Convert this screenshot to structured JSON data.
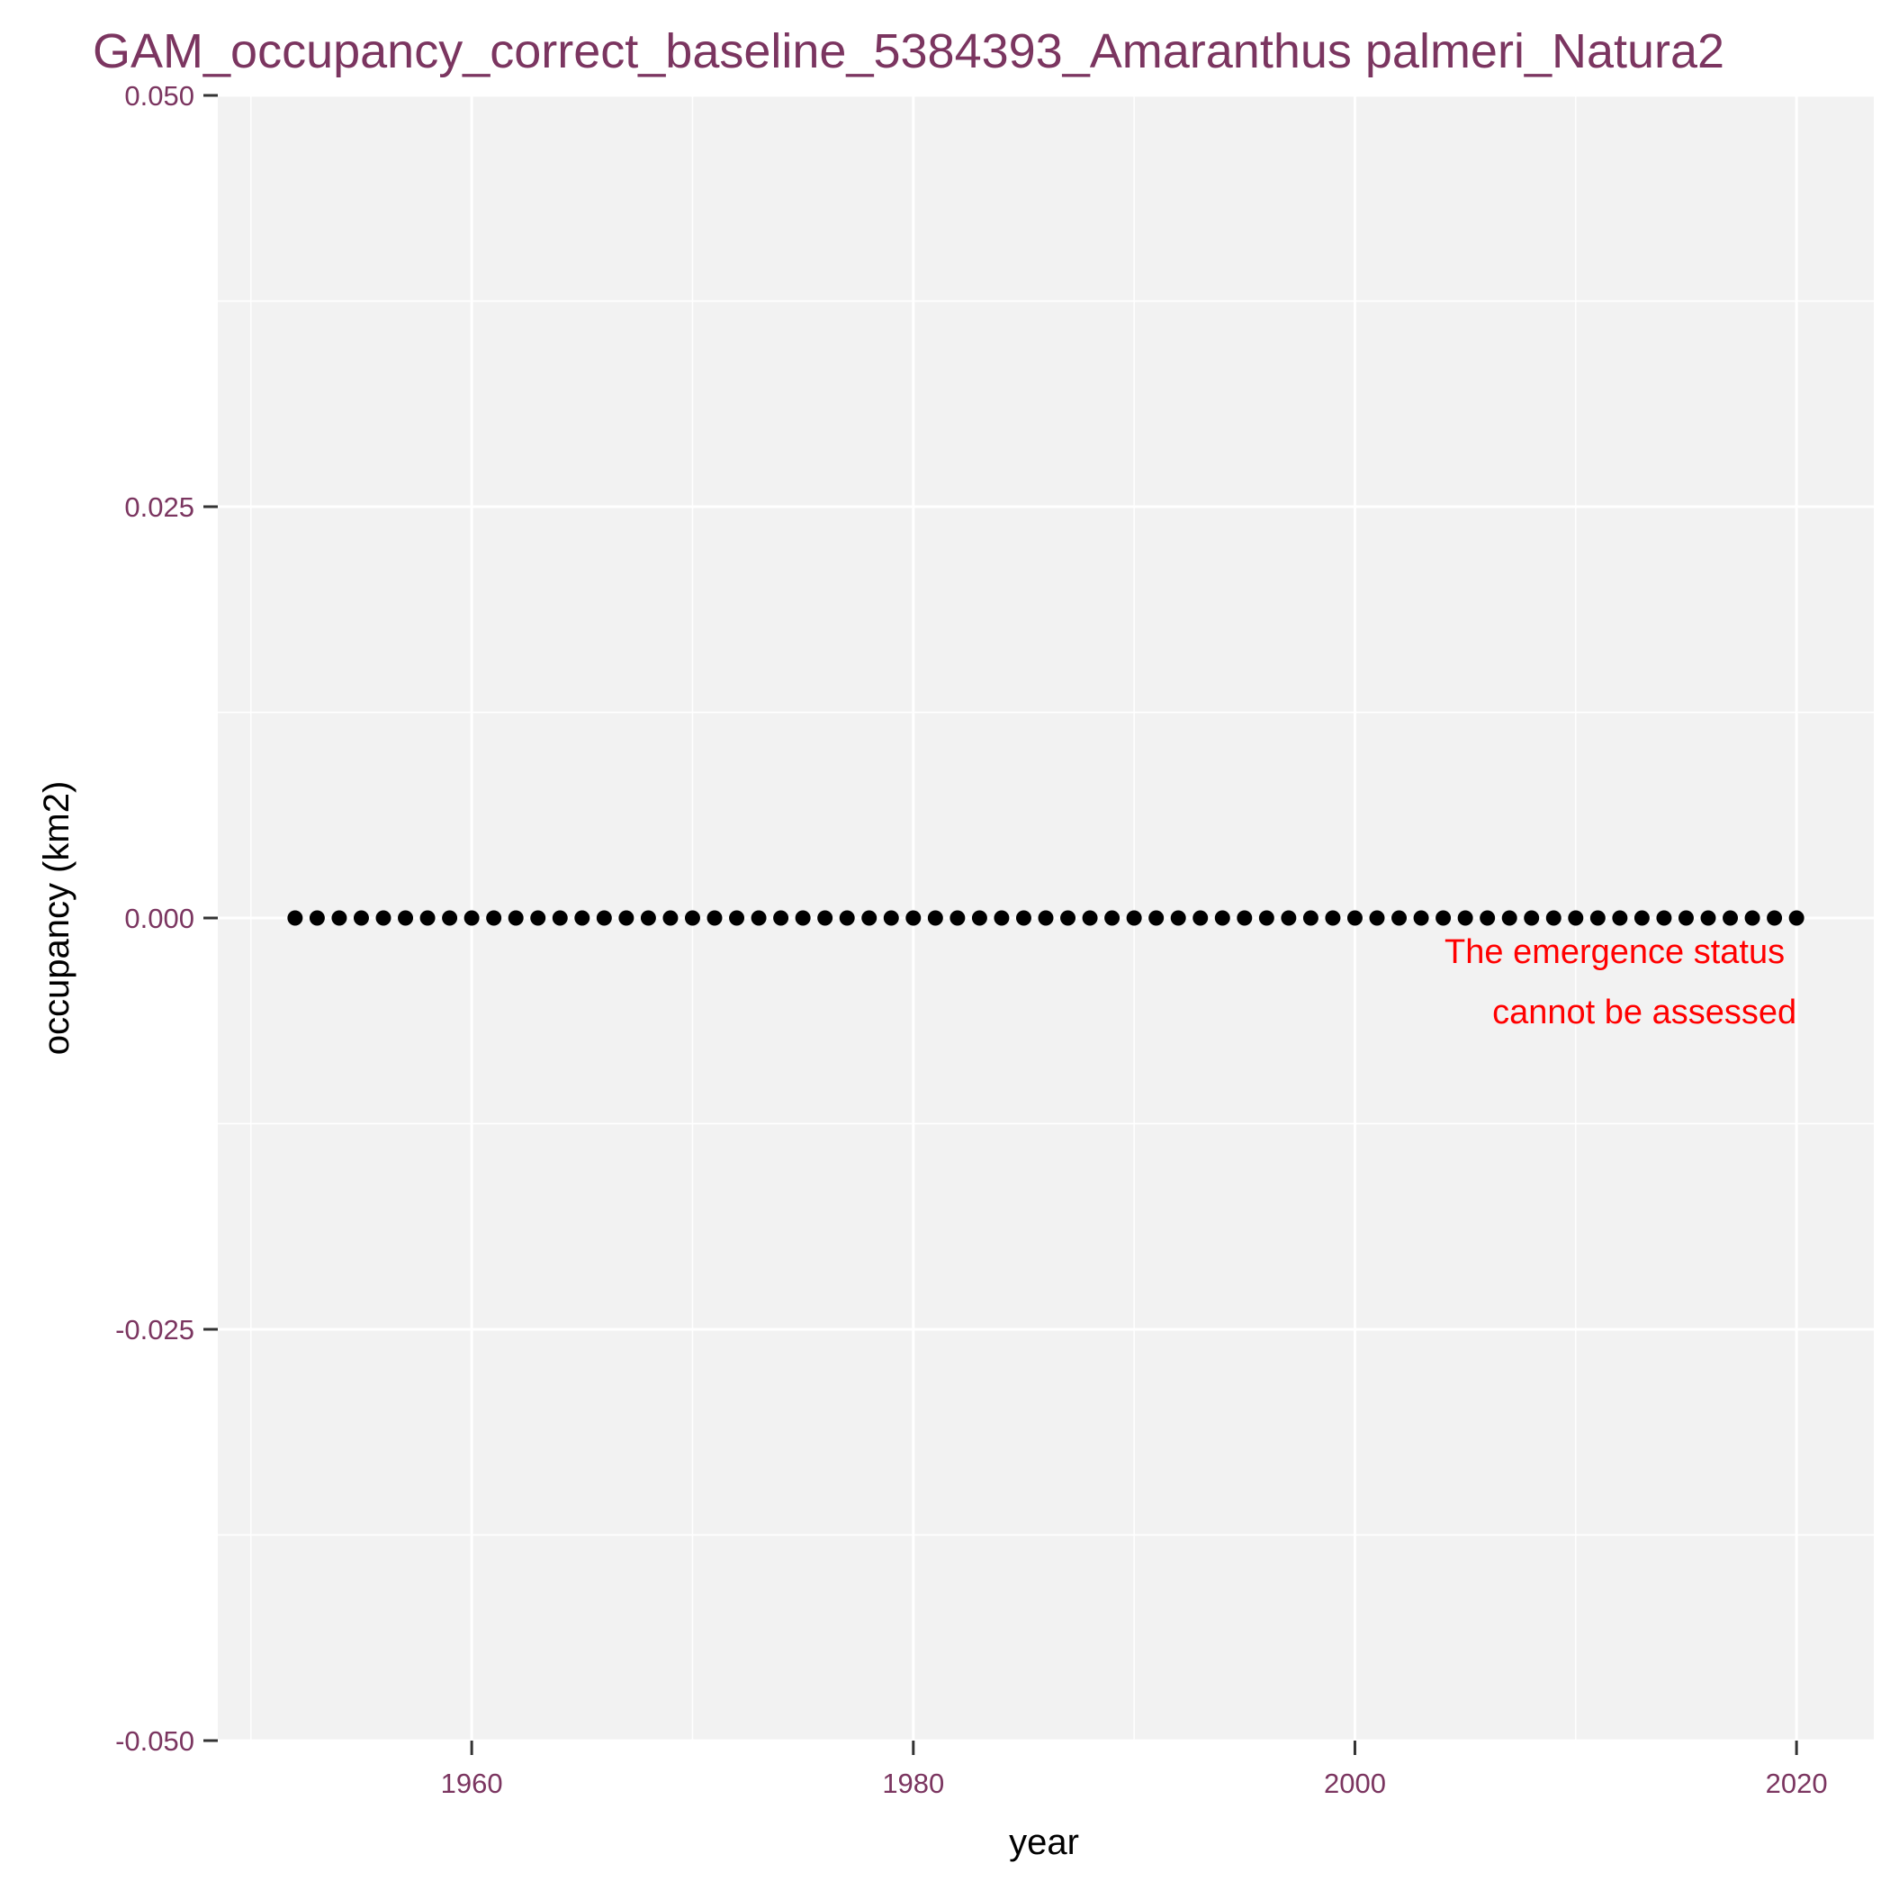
{
  "chart_data": {
    "type": "scatter",
    "title": "GAM_occupancy_correct_baseline_5384393_Amaranthus palmeri_Natura2",
    "xlabel": "year",
    "ylabel": "occupancy (km2)",
    "xlim": [
      1948.5,
      2023.5
    ],
    "ylim": [
      -0.05,
      0.05
    ],
    "x_ticks": [
      1960,
      1980,
      2000,
      2020
    ],
    "x_tick_labels": [
      "1960",
      "1980",
      "2000",
      "2020"
    ],
    "x_minor_ticks": [
      1950,
      1970,
      1990,
      2010
    ],
    "y_ticks": [
      -0.05,
      -0.025,
      0,
      0.025,
      0.05
    ],
    "y_tick_labels": [
      "-0.050",
      "-0.025",
      "0.000",
      "0.025",
      "0.050"
    ],
    "y_minor_ticks": [
      -0.0375,
      -0.0125,
      0.0125,
      0.0375
    ],
    "grid": true,
    "x": [
      1952,
      1953,
      1954,
      1955,
      1956,
      1957,
      1958,
      1959,
      1960,
      1961,
      1962,
      1963,
      1964,
      1965,
      1966,
      1967,
      1968,
      1969,
      1970,
      1971,
      1972,
      1973,
      1974,
      1975,
      1976,
      1977,
      1978,
      1979,
      1980,
      1981,
      1982,
      1983,
      1984,
      1985,
      1986,
      1987,
      1988,
      1989,
      1990,
      1991,
      1992,
      1993,
      1994,
      1995,
      1996,
      1997,
      1998,
      1999,
      2000,
      2001,
      2002,
      2003,
      2004,
      2005,
      2006,
      2007,
      2008,
      2009,
      2010,
      2011,
      2012,
      2013,
      2014,
      2015,
      2016,
      2017,
      2018,
      2019,
      2020
    ],
    "y": [
      0,
      0,
      0,
      0,
      0,
      0,
      0,
      0,
      0,
      0,
      0,
      0,
      0,
      0,
      0,
      0,
      0,
      0,
      0,
      0,
      0,
      0,
      0,
      0,
      0,
      0,
      0,
      0,
      0,
      0,
      0,
      0,
      0,
      0,
      0,
      0,
      0,
      0,
      0,
      0,
      0,
      0,
      0,
      0,
      0,
      0,
      0,
      0,
      0,
      0,
      0,
      0,
      0,
      0,
      0,
      0,
      0,
      0,
      0,
      0,
      0,
      0,
      0,
      0,
      0,
      0,
      0,
      0,
      0
    ],
    "annotation": {
      "lines": [
        "The emergence status",
        "cannot be assessed"
      ],
      "x": 2020,
      "y": 0
    }
  },
  "colors": {
    "title": "#7b3560",
    "tick_label": "#7b3560",
    "panel_bg": "#f2f2f2",
    "grid": "#ffffff",
    "point": "#000000",
    "annotation": "#ff0000"
  }
}
